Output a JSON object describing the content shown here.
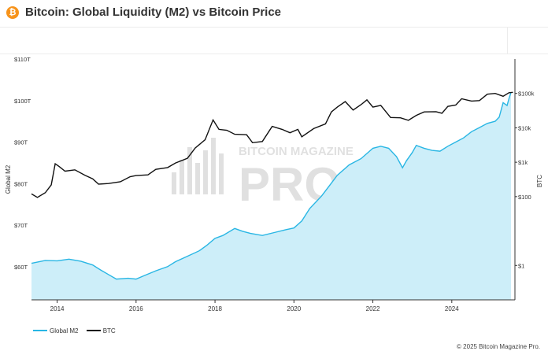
{
  "header": {
    "logo_symbol": "₿",
    "logo_color": "#f7931a",
    "title": "Bitcoin: Global Liquidity (M2) vs Bitcoin Price"
  },
  "watermark": {
    "line1": "BITCOIN MAGAZINE",
    "line2": "PRO"
  },
  "legend": {
    "items": [
      {
        "label": "Global M2",
        "color": "#29b6e4"
      },
      {
        "label": "BTC",
        "color": "#111111"
      }
    ]
  },
  "footer": {
    "copyright": "© 2025 Bitcoin Magazine Pro."
  },
  "chart_data": {
    "type": "line",
    "title": "Bitcoin: Global Liquidity (M2) vs Bitcoin Price",
    "xlabel": "",
    "ylabel_left": "Global M2",
    "ylabel_right": "BTC",
    "xlim": [
      2013.35,
      2025.6
    ],
    "ylim_left": [
      52,
      110
    ],
    "ylim_right_log": [
      0.1,
      1000000
    ],
    "x_ticks": [
      {
        "value": 2014,
        "label": "2014"
      },
      {
        "value": 2016,
        "label": "2016"
      },
      {
        "value": 2018,
        "label": "2018"
      },
      {
        "value": 2020,
        "label": "2020"
      },
      {
        "value": 2022,
        "label": "2022"
      },
      {
        "value": 2024,
        "label": "2024"
      }
    ],
    "left_ticks": [
      {
        "value": 60,
        "label": "$60T"
      },
      {
        "value": 70,
        "label": "$70T"
      },
      {
        "value": 80,
        "label": "$80T"
      },
      {
        "value": 90,
        "label": "$90T"
      },
      {
        "value": 100,
        "label": "$100T"
      },
      {
        "value": 110,
        "label": "$110T"
      }
    ],
    "right_ticks": [
      {
        "value": 1,
        "label": "$1"
      },
      {
        "value": 100,
        "label": "$100"
      },
      {
        "value": 1000,
        "label": "$1k"
      },
      {
        "value": 10000,
        "label": "$10k"
      },
      {
        "value": 100000,
        "label": "$100k"
      }
    ],
    "grid": false,
    "legend_position": "bottom-left",
    "series": [
      {
        "name": "Global M2",
        "axis": "left",
        "color": "#29b6e4",
        "fill": "#cdeef9",
        "points": [
          [
            2013.35,
            60.8
          ],
          [
            2013.7,
            61.5
          ],
          [
            2014.0,
            61.4
          ],
          [
            2014.3,
            61.8
          ],
          [
            2014.6,
            61.3
          ],
          [
            2014.9,
            60.4
          ],
          [
            2015.1,
            59.2
          ],
          [
            2015.3,
            58.1
          ],
          [
            2015.5,
            57.0
          ],
          [
            2015.8,
            57.2
          ],
          [
            2016.0,
            57.0
          ],
          [
            2016.2,
            57.8
          ],
          [
            2016.5,
            59.0
          ],
          [
            2016.8,
            60.0
          ],
          [
            2017.0,
            61.2
          ],
          [
            2017.3,
            62.5
          ],
          [
            2017.6,
            63.8
          ],
          [
            2017.8,
            65.2
          ],
          [
            2018.0,
            66.8
          ],
          [
            2018.2,
            67.5
          ],
          [
            2018.5,
            69.2
          ],
          [
            2018.7,
            68.5
          ],
          [
            2018.9,
            68.0
          ],
          [
            2019.2,
            67.5
          ],
          [
            2019.5,
            68.2
          ],
          [
            2019.8,
            68.9
          ],
          [
            2020.0,
            69.3
          ],
          [
            2020.2,
            71.0
          ],
          [
            2020.4,
            74.0
          ],
          [
            2020.7,
            77.0
          ],
          [
            2020.9,
            79.5
          ],
          [
            2021.1,
            82.0
          ],
          [
            2021.4,
            84.5
          ],
          [
            2021.7,
            86.0
          ],
          [
            2022.0,
            88.5
          ],
          [
            2022.2,
            89.0
          ],
          [
            2022.4,
            88.5
          ],
          [
            2022.6,
            86.5
          ],
          [
            2022.75,
            83.8
          ],
          [
            2022.85,
            85.5
          ],
          [
            2023.0,
            87.5
          ],
          [
            2023.1,
            89.2
          ],
          [
            2023.3,
            88.5
          ],
          [
            2023.5,
            88.0
          ],
          [
            2023.7,
            87.8
          ],
          [
            2023.9,
            89.0
          ],
          [
            2024.1,
            90.0
          ],
          [
            2024.3,
            91.0
          ],
          [
            2024.5,
            92.5
          ],
          [
            2024.7,
            93.5
          ],
          [
            2024.9,
            94.5
          ],
          [
            2025.1,
            95.0
          ],
          [
            2025.2,
            96.0
          ],
          [
            2025.3,
            99.5
          ],
          [
            2025.4,
            98.8
          ],
          [
            2025.45,
            100.5
          ],
          [
            2025.5,
            102.0
          ]
        ]
      },
      {
        "name": "BTC",
        "axis": "right",
        "color": "#111111",
        "points": [
          [
            2013.35,
            120
          ],
          [
            2013.5,
            95
          ],
          [
            2013.7,
            130
          ],
          [
            2013.85,
            220
          ],
          [
            2013.95,
            900
          ],
          [
            2014.05,
            750
          ],
          [
            2014.2,
            550
          ],
          [
            2014.45,
            600
          ],
          [
            2014.7,
            420
          ],
          [
            2014.9,
            330
          ],
          [
            2015.05,
            230
          ],
          [
            2015.3,
            240
          ],
          [
            2015.6,
            270
          ],
          [
            2015.85,
            380
          ],
          [
            2016.0,
            410
          ],
          [
            2016.3,
            430
          ],
          [
            2016.5,
            620
          ],
          [
            2016.8,
            700
          ],
          [
            2017.0,
            950
          ],
          [
            2017.3,
            1300
          ],
          [
            2017.5,
            2600
          ],
          [
            2017.75,
            4500
          ],
          [
            2017.95,
            17000
          ],
          [
            2018.1,
            9000
          ],
          [
            2018.3,
            8500
          ],
          [
            2018.5,
            6500
          ],
          [
            2018.8,
            6300
          ],
          [
            2018.95,
            3700
          ],
          [
            2019.2,
            4000
          ],
          [
            2019.45,
            11000
          ],
          [
            2019.7,
            9000
          ],
          [
            2019.9,
            7200
          ],
          [
            2020.1,
            9000
          ],
          [
            2020.2,
            5500
          ],
          [
            2020.5,
            9500
          ],
          [
            2020.8,
            13000
          ],
          [
            2020.95,
            29000
          ],
          [
            2021.1,
            40000
          ],
          [
            2021.3,
            58000
          ],
          [
            2021.5,
            33000
          ],
          [
            2021.7,
            47000
          ],
          [
            2021.85,
            65000
          ],
          [
            2022.0,
            40000
          ],
          [
            2022.2,
            45000
          ],
          [
            2022.45,
            20000
          ],
          [
            2022.7,
            19500
          ],
          [
            2022.9,
            16500
          ],
          [
            2023.1,
            23000
          ],
          [
            2023.3,
            29000
          ],
          [
            2023.6,
            29500
          ],
          [
            2023.75,
            26500
          ],
          [
            2023.9,
            42000
          ],
          [
            2024.1,
            46000
          ],
          [
            2024.25,
            70000
          ],
          [
            2024.5,
            60000
          ],
          [
            2024.7,
            62000
          ],
          [
            2024.9,
            95000
          ],
          [
            2025.1,
            100000
          ],
          [
            2025.3,
            83000
          ],
          [
            2025.45,
            105000
          ],
          [
            2025.55,
            108000
          ]
        ]
      }
    ]
  }
}
